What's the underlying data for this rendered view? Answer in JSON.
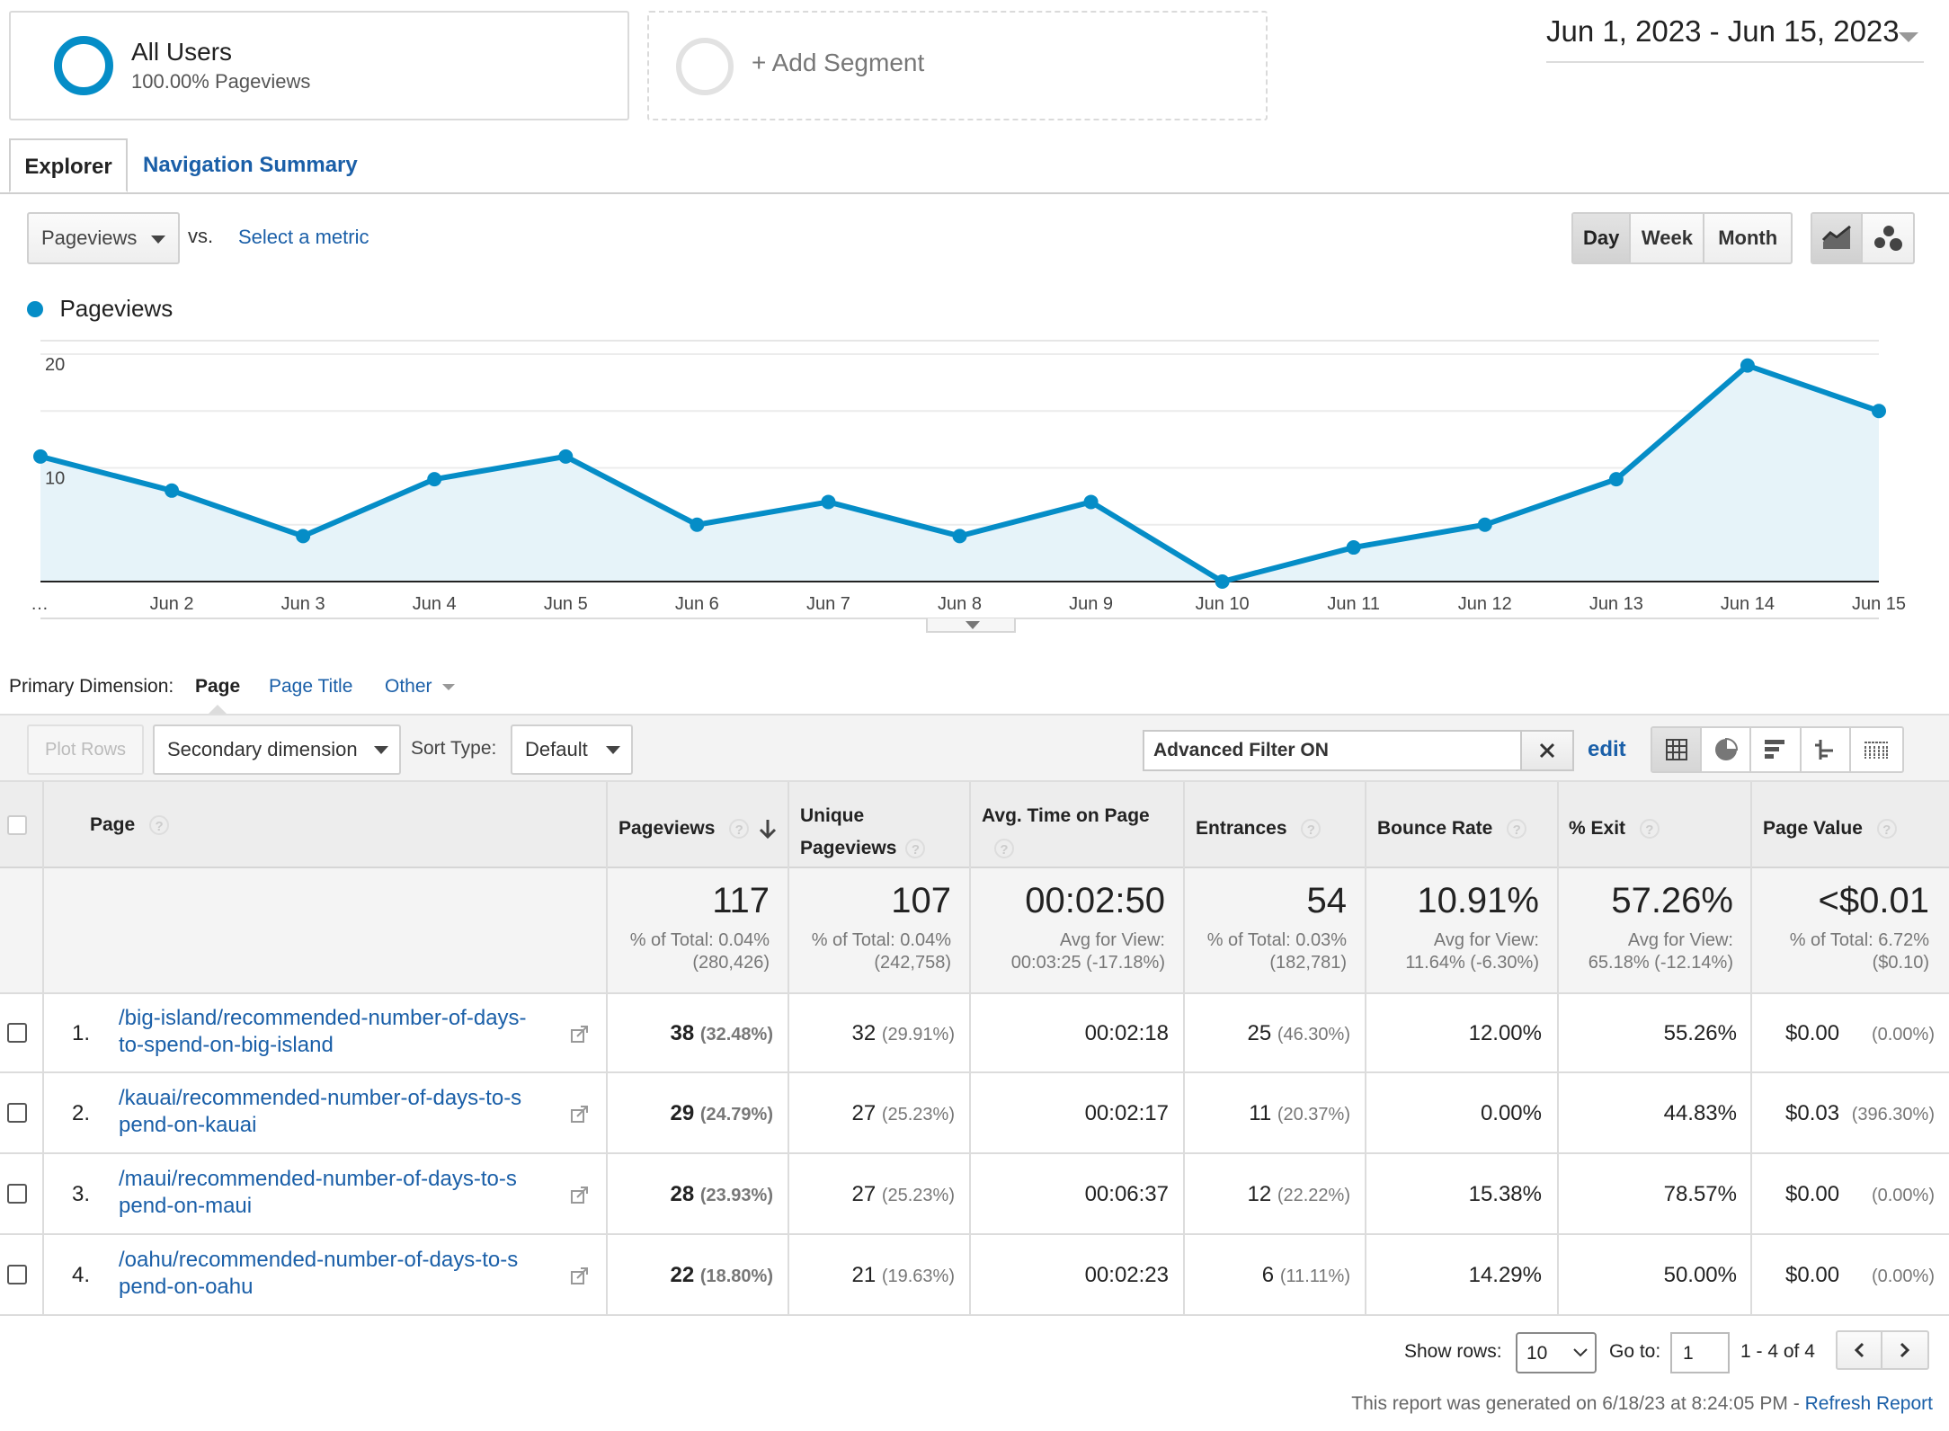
{
  "segments": {
    "all_users": {
      "title": "All Users",
      "subtitle": "100.00% Pageviews"
    },
    "add_segment": "+ Add Segment"
  },
  "date_range": "Jun 1, 2023 - Jun 15, 2023",
  "tabs": [
    "Explorer",
    "Navigation Summary"
  ],
  "metric_bar": {
    "metric": "Pageviews",
    "vs": "vs.",
    "select_metric": "Select a metric",
    "periods": [
      "Day",
      "Week",
      "Month"
    ],
    "active_period": "Day"
  },
  "legend": "Pageviews",
  "colors": {
    "series": "#058dc7",
    "fill": "#e6f3f9",
    "link": "#1a5fa8"
  },
  "chart_data": {
    "type": "area",
    "x": [
      "…",
      "Jun 2",
      "Jun 3",
      "Jun 4",
      "Jun 5",
      "Jun 6",
      "Jun 7",
      "Jun 8",
      "Jun 9",
      "Jun 10",
      "Jun 11",
      "Jun 12",
      "Jun 13",
      "Jun 14",
      "Jun 15"
    ],
    "series": [
      {
        "name": "Pageviews",
        "values": [
          11,
          8,
          4,
          9,
          11,
          5,
          7,
          4,
          7,
          0,
          3,
          5,
          9,
          19,
          15
        ]
      }
    ],
    "yticks": [
      10,
      20
    ],
    "ylim": [
      0,
      20
    ],
    "grid": true
  },
  "dimension": {
    "label": "Primary Dimension:",
    "options": [
      "Page",
      "Page Title",
      "Other"
    ],
    "active": "Page"
  },
  "toolbar": {
    "plot_rows": "Plot Rows",
    "secondary_dimension": "Secondary dimension",
    "sort_type_label": "Sort Type:",
    "sort_type": "Default",
    "filter": "Advanced Filter ON",
    "edit": "edit"
  },
  "table": {
    "headers": {
      "page": "Page",
      "pageviews": "Pageviews",
      "unique_line1": "Unique",
      "unique_line2": "Pageviews",
      "avg_time": "Avg. Time on Page",
      "entrances": "Entrances",
      "bounce": "Bounce Rate",
      "exit": "% Exit",
      "value": "Page Value"
    },
    "summary": {
      "pageviews": {
        "big": "117",
        "l1": "% of Total: 0.04%",
        "l2": "(280,426)"
      },
      "unique": {
        "big": "107",
        "l1": "% of Total: 0.04%",
        "l2": "(242,758)"
      },
      "avg_time": {
        "big": "00:02:50",
        "l1": "Avg for View:",
        "l2": "00:03:25 (-17.18%)"
      },
      "entrances": {
        "big": "54",
        "l1": "% of Total: 0.03%",
        "l2": "(182,781)"
      },
      "bounce": {
        "big": "10.91%",
        "l1": "Avg for View:",
        "l2": "11.64% (-6.30%)"
      },
      "exit": {
        "big": "57.26%",
        "l1": "Avg for View:",
        "l2": "65.18% (-12.14%)"
      },
      "value": {
        "big": "<$0.01",
        "l1": "% of Total: 6.72%",
        "l2": "($0.10)"
      }
    },
    "rows": [
      {
        "num": "1.",
        "line1": "/big-island/recommended-number-of-days-",
        "line2": "to-spend-on-big-island",
        "pv": "38",
        "pv_pct": "(32.48%)",
        "upv": "32",
        "upv_pct": "(29.91%)",
        "time": "00:02:18",
        "ent": "25",
        "ent_pct": "(46.30%)",
        "bounce": "12.00%",
        "exit": "55.26%",
        "val": "$0.00",
        "val_pct": "(0.00%)"
      },
      {
        "num": "2.",
        "line1": "/kauai/recommended-number-of-days-to-s",
        "line2": "pend-on-kauai",
        "pv": "29",
        "pv_pct": "(24.79%)",
        "upv": "27",
        "upv_pct": "(25.23%)",
        "time": "00:02:17",
        "ent": "11",
        "ent_pct": "(20.37%)",
        "bounce": "0.00%",
        "exit": "44.83%",
        "val": "$0.03",
        "val_pct": "(396.30%)"
      },
      {
        "num": "3.",
        "line1": "/maui/recommended-number-of-days-to-s",
        "line2": "pend-on-maui",
        "pv": "28",
        "pv_pct": "(23.93%)",
        "upv": "27",
        "upv_pct": "(25.23%)",
        "time": "00:06:37",
        "ent": "12",
        "ent_pct": "(22.22%)",
        "bounce": "15.38%",
        "exit": "78.57%",
        "val": "$0.00",
        "val_pct": "(0.00%)"
      },
      {
        "num": "4.",
        "line1": "/oahu/recommended-number-of-days-to-s",
        "line2": "pend-on-oahu",
        "pv": "22",
        "pv_pct": "(18.80%)",
        "upv": "21",
        "upv_pct": "(19.63%)",
        "time": "00:02:23",
        "ent": "6",
        "ent_pct": "(11.11%)",
        "bounce": "14.29%",
        "exit": "50.00%",
        "val": "$0.00",
        "val_pct": "(0.00%)"
      }
    ]
  },
  "pagination": {
    "show_rows_label": "Show rows:",
    "show_rows": "10",
    "goto_label": "Go to:",
    "goto": "1",
    "range": "1 - 4 of 4"
  },
  "footer": {
    "generated": "This report was generated on 6/18/23 at 8:24:05 PM - ",
    "refresh": "Refresh Report"
  }
}
